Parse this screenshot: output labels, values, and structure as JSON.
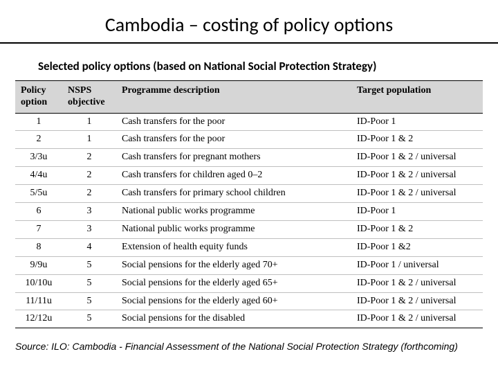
{
  "slide": {
    "title": "Cambodia – costing of policy options",
    "subtitle": "Selected policy options (based on National Social Protection Strategy)",
    "source": "Source: ILO: Cambodia - Financial Assessment of the National Social Protection Strategy (forthcoming)"
  },
  "table": {
    "columns": [
      {
        "key": "option",
        "label": "Policy option",
        "class": "col-opt"
      },
      {
        "key": "objective",
        "label": "NSPS objective",
        "class": "col-obj"
      },
      {
        "key": "description",
        "label": "Programme description",
        "class": "col-desc"
      },
      {
        "key": "population",
        "label": "Target population",
        "class": "col-pop"
      }
    ],
    "rows": [
      {
        "option": "1",
        "objective": "1",
        "description": "Cash transfers for the poor",
        "population": "ID-Poor 1"
      },
      {
        "option": "2",
        "objective": "1",
        "description": "Cash transfers for the poor",
        "population": "ID-Poor 1 & 2"
      },
      {
        "option": "3/3u",
        "objective": "2",
        "description": "Cash transfers for pregnant mothers",
        "population": "ID-Poor 1 & 2 / universal"
      },
      {
        "option": "4/4u",
        "objective": "2",
        "description": "Cash transfers for children aged 0–2",
        "population": "ID-Poor 1 & 2 / universal"
      },
      {
        "option": "5/5u",
        "objective": "2",
        "description": "Cash transfers for primary school children",
        "population": "ID-Poor 1 & 2 / universal"
      },
      {
        "option": "6",
        "objective": "3",
        "description": "National public works programme",
        "population": "ID-Poor 1"
      },
      {
        "option": "7",
        "objective": "3",
        "description": "National public works programme",
        "population": "ID-Poor 1 & 2"
      },
      {
        "option": "8",
        "objective": "4",
        "description": "Extension of health equity funds",
        "population": "ID-Poor 1 &2"
      },
      {
        "option": "9/9u",
        "objective": "5",
        "description": "Social pensions for the elderly aged 70+",
        "population": "ID-Poor 1 / universal"
      },
      {
        "option": "10/10u",
        "objective": "5",
        "description": "Social pensions for the elderly aged 65+",
        "population": "ID-Poor 1 & 2 / universal"
      },
      {
        "option": "11/11u",
        "objective": "5",
        "description": "Social pensions for the elderly aged 60+",
        "population": "ID-Poor 1 & 2 / universal"
      },
      {
        "option": "12/12u",
        "objective": "5",
        "description": "Social pensions for the disabled",
        "population": "ID-Poor 1 & 2 / universal"
      }
    ],
    "header_bg": "#d6d6d6",
    "border_color": "#000000",
    "row_border_color": "#bfbfbf",
    "header_fontsize": 14,
    "cell_fontsize": 14
  },
  "colors": {
    "background": "#ffffff",
    "text": "#000000"
  }
}
